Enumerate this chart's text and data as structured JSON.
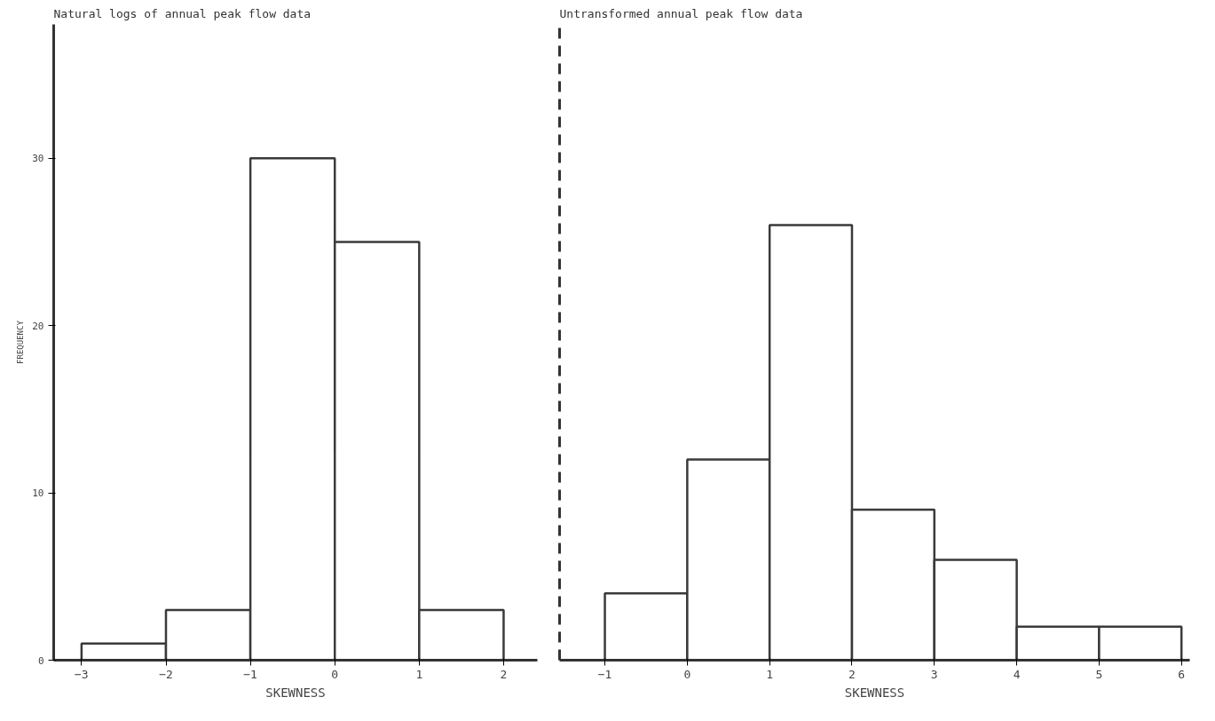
{
  "chart_data": [
    {
      "type": "histogram",
      "title": "Natural logs of annual peak flow data",
      "xlabel": "SKEWNESS",
      "ylabel": "FREQUENCY",
      "bins": [
        -3,
        -2,
        -1,
        0,
        1,
        2
      ],
      "values": [
        1,
        3,
        30,
        25,
        3
      ],
      "color": "#3a3a3a",
      "xlim": [
        -3.33,
        2.4
      ],
      "xticks": [
        -3,
        -2,
        -1,
        0,
        1,
        2
      ],
      "ylim": [
        0,
        38
      ],
      "yticks": [
        0,
        10,
        20,
        30
      ],
      "grid": false
    },
    {
      "type": "histogram",
      "title": "Untransformed annual peak flow data",
      "xlabel": "SKEWNESS",
      "bins": [
        -1,
        0,
        1,
        2,
        3,
        4,
        5,
        6
      ],
      "values": [
        4,
        12,
        26,
        9,
        6,
        2,
        2
      ],
      "color": "#3a3a3a",
      "xlim": [
        -1.55,
        6.1
      ],
      "xticks": [
        -1,
        0,
        1,
        2,
        3,
        4,
        5,
        6
      ],
      "ylim": [
        0,
        38
      ],
      "grid": false,
      "tick_labels": "x"
    }
  ]
}
